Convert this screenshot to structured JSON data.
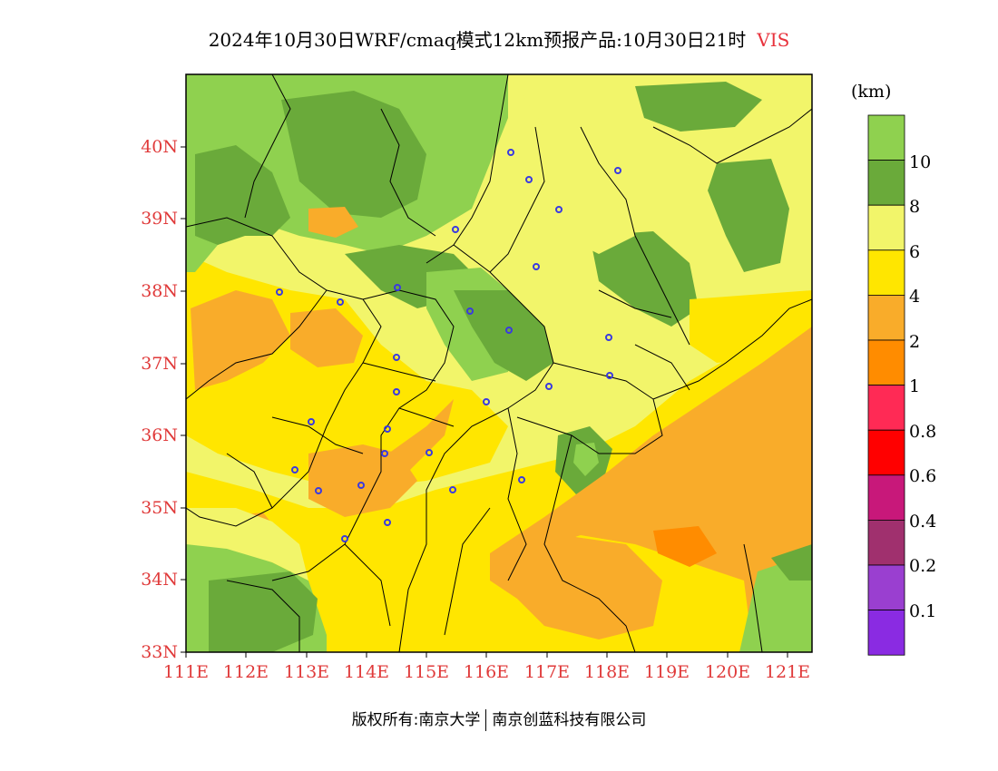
{
  "title": {
    "main": "2024年10月30日WRF/cmaq模式12km预报产品:10月30日21时",
    "variable": "VIS"
  },
  "axes": {
    "lat_ticks": [
      "40N",
      "39N",
      "38N",
      "37N",
      "36N",
      "35N",
      "34N",
      "33N"
    ],
    "lon_ticks": [
      "111E",
      "112E",
      "113E",
      "114E",
      "115E",
      "116E",
      "117E",
      "118E",
      "119E",
      "120E",
      "121E"
    ]
  },
  "colorbar": {
    "unit": "(km)",
    "levels": [
      "10",
      "8",
      "6",
      "4",
      "2",
      "1",
      "0.8",
      "0.6",
      "0.4",
      "0.2",
      "0.1"
    ],
    "colors": [
      "#8fd14f",
      "#6aaa3a",
      "#f2f56a",
      "#ffe600",
      "#f9ac2a",
      "#ff8c00",
      "#ff2a55",
      "#ff0000",
      "#c8187a",
      "#a0306e",
      "#9a3fd0",
      "#8a2be2"
    ]
  },
  "footer": {
    "left": "版权所有:南京大学",
    "right": "南京创蓝科技有限公司"
  },
  "map_colors": {
    "border": "#000000",
    "station": "#3a3ae0"
  }
}
